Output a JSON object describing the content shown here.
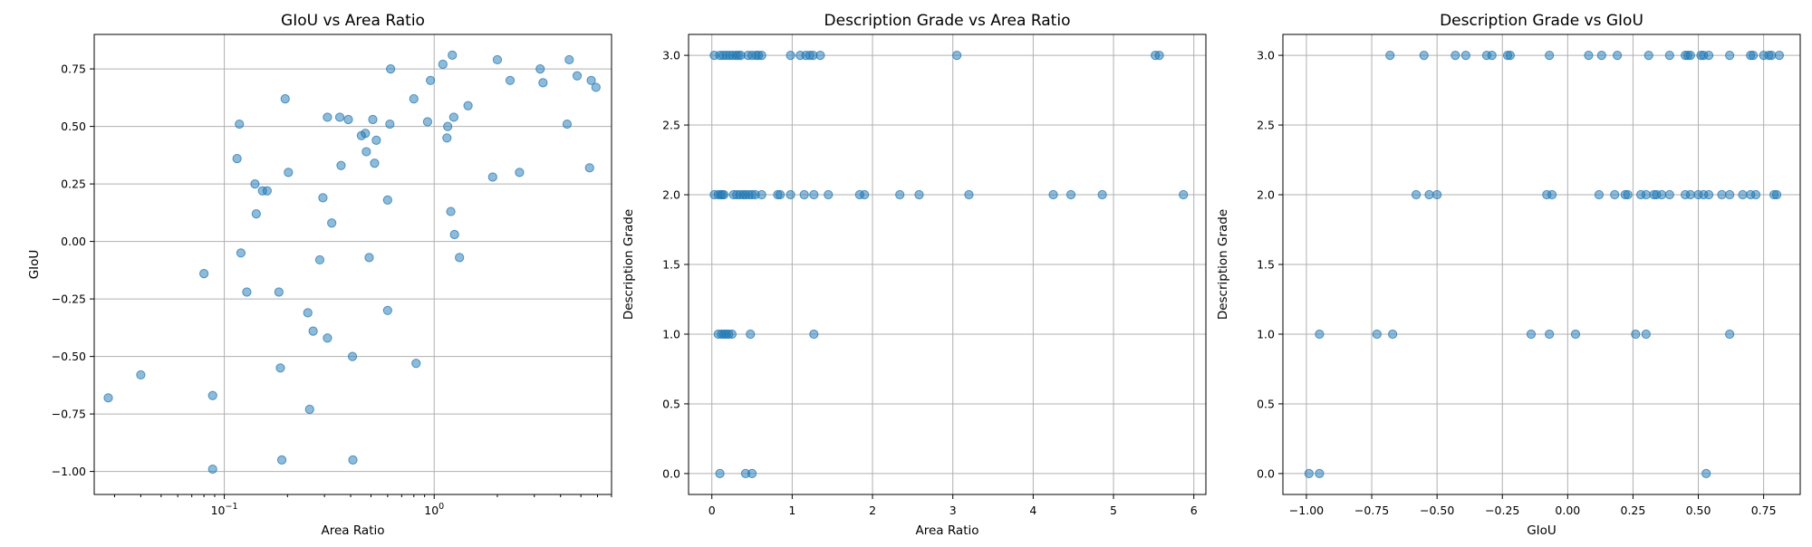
{
  "chart_data": [
    {
      "type": "scatter",
      "title": "GIoU vs Area Ratio",
      "xlabel": "Area Ratio",
      "ylabel": "GIoU",
      "xscale": "log",
      "xlim": [
        0.024,
        7.0
      ],
      "ylim": [
        -1.1,
        0.9
      ],
      "grid": true,
      "point_color": "#1f77b4",
      "x_ticks": [
        {
          "value": 0.1,
          "base": "10",
          "exp": "−1"
        },
        {
          "value": 1,
          "base": "10",
          "exp": "0"
        }
      ],
      "y_ticks": [
        "−1.00",
        "−0.75",
        "−0.50",
        "−0.25",
        "0.00",
        "0.25",
        "0.50",
        "0.75"
      ],
      "y_tick_values": [
        -1.0,
        -0.75,
        -0.5,
        -0.25,
        0.0,
        0.25,
        0.5,
        0.75
      ],
      "points": [
        [
          0.028,
          -0.68
        ],
        [
          0.04,
          -0.58
        ],
        [
          0.08,
          -0.14
        ],
        [
          0.088,
          -0.67
        ],
        [
          0.088,
          -0.99
        ],
        [
          0.115,
          0.36
        ],
        [
          0.118,
          0.51
        ],
        [
          0.12,
          -0.05
        ],
        [
          0.128,
          -0.22
        ],
        [
          0.14,
          0.25
        ],
        [
          0.142,
          0.12
        ],
        [
          0.152,
          0.22
        ],
        [
          0.16,
          0.22
        ],
        [
          0.182,
          -0.22
        ],
        [
          0.185,
          -0.55
        ],
        [
          0.188,
          -0.95
        ],
        [
          0.195,
          0.62
        ],
        [
          0.202,
          0.3
        ],
        [
          0.25,
          -0.31
        ],
        [
          0.255,
          -0.73
        ],
        [
          0.265,
          -0.39
        ],
        [
          0.285,
          -0.08
        ],
        [
          0.295,
          0.19
        ],
        [
          0.31,
          -0.42
        ],
        [
          0.31,
          0.54
        ],
        [
          0.325,
          0.08
        ],
        [
          0.355,
          0.54
        ],
        [
          0.36,
          0.33
        ],
        [
          0.39,
          0.53
        ],
        [
          0.408,
          -0.5
        ],
        [
          0.41,
          -0.95
        ],
        [
          0.45,
          0.46
        ],
        [
          0.47,
          0.47
        ],
        [
          0.475,
          0.39
        ],
        [
          0.49,
          -0.07
        ],
        [
          0.51,
          0.53
        ],
        [
          0.52,
          0.34
        ],
        [
          0.53,
          0.44
        ],
        [
          0.6,
          0.18
        ],
        [
          0.6,
          -0.3
        ],
        [
          0.615,
          0.51
        ],
        [
          0.62,
          0.75
        ],
        [
          0.8,
          0.62
        ],
        [
          0.82,
          -0.53
        ],
        [
          0.93,
          0.52
        ],
        [
          0.96,
          0.7
        ],
        [
          1.1,
          0.77
        ],
        [
          1.15,
          0.45
        ],
        [
          1.16,
          0.5
        ],
        [
          1.2,
          0.13
        ],
        [
          1.22,
          0.81
        ],
        [
          1.24,
          0.54
        ],
        [
          1.25,
          0.03
        ],
        [
          1.32,
          -0.07
        ],
        [
          1.45,
          0.59
        ],
        [
          1.9,
          0.28
        ],
        [
          2.0,
          0.79
        ],
        [
          2.3,
          0.7
        ],
        [
          2.55,
          0.3
        ],
        [
          3.2,
          0.75
        ],
        [
          3.3,
          0.69
        ],
        [
          4.3,
          0.51
        ],
        [
          4.4,
          0.79
        ],
        [
          4.8,
          0.72
        ],
        [
          5.5,
          0.32
        ],
        [
          5.6,
          0.7
        ],
        [
          5.9,
          0.67
        ]
      ]
    },
    {
      "type": "scatter",
      "title": "Description Grade vs Area Ratio",
      "xlabel": "Area Ratio",
      "ylabel": "Description Grade",
      "xlim": [
        -0.29,
        6.15
      ],
      "ylim": [
        -0.15,
        3.15
      ],
      "grid": true,
      "point_color": "#1f77b4",
      "x_ticks": [
        "0",
        "1",
        "2",
        "3",
        "4",
        "5",
        "6"
      ],
      "x_tick_values": [
        0,
        1,
        2,
        3,
        4,
        5,
        6
      ],
      "y_ticks": [
        "0.0",
        "0.5",
        "1.0",
        "1.5",
        "2.0",
        "2.5",
        "3.0"
      ],
      "y_tick_values": [
        0,
        0.5,
        1,
        1.5,
        2,
        2.5,
        3
      ],
      "points": [
        [
          0.03,
          3
        ],
        [
          0.1,
          3
        ],
        [
          0.14,
          3
        ],
        [
          0.18,
          3
        ],
        [
          0.22,
          3
        ],
        [
          0.26,
          3
        ],
        [
          0.3,
          3
        ],
        [
          0.33,
          3
        ],
        [
          0.36,
          3
        ],
        [
          0.45,
          3
        ],
        [
          0.5,
          3
        ],
        [
          0.55,
          3
        ],
        [
          0.58,
          3
        ],
        [
          0.62,
          3
        ],
        [
          0.98,
          3
        ],
        [
          1.1,
          3
        ],
        [
          1.17,
          3
        ],
        [
          1.22,
          3
        ],
        [
          1.26,
          3
        ],
        [
          1.35,
          3
        ],
        [
          3.05,
          3
        ],
        [
          5.52,
          3
        ],
        [
          5.57,
          3
        ],
        [
          0.03,
          2
        ],
        [
          0.08,
          2
        ],
        [
          0.11,
          2
        ],
        [
          0.13,
          2
        ],
        [
          0.15,
          2
        ],
        [
          0.27,
          2
        ],
        [
          0.31,
          2
        ],
        [
          0.35,
          2
        ],
        [
          0.39,
          2
        ],
        [
          0.42,
          2
        ],
        [
          0.46,
          2
        ],
        [
          0.5,
          2
        ],
        [
          0.54,
          2
        ],
        [
          0.62,
          2
        ],
        [
          0.82,
          2
        ],
        [
          0.85,
          2
        ],
        [
          0.98,
          2
        ],
        [
          1.15,
          2
        ],
        [
          1.27,
          2
        ],
        [
          1.45,
          2
        ],
        [
          1.84,
          2
        ],
        [
          1.9,
          2
        ],
        [
          2.34,
          2
        ],
        [
          2.58,
          2
        ],
        [
          3.2,
          2
        ],
        [
          4.25,
          2
        ],
        [
          4.47,
          2
        ],
        [
          4.86,
          2
        ],
        [
          5.87,
          2
        ],
        [
          0.08,
          1
        ],
        [
          0.12,
          1
        ],
        [
          0.15,
          1
        ],
        [
          0.18,
          1
        ],
        [
          0.21,
          1
        ],
        [
          0.25,
          1
        ],
        [
          0.48,
          1
        ],
        [
          1.27,
          1
        ],
        [
          0.1,
          0
        ],
        [
          0.42,
          0
        ],
        [
          0.5,
          0
        ]
      ]
    },
    {
      "type": "scatter",
      "title": "Description Grade vs GIoU",
      "xlabel": "GIoU",
      "ylabel": "Description Grade",
      "xlim": [
        -1.09,
        0.89
      ],
      "ylim": [
        -0.15,
        3.15
      ],
      "grid": true,
      "point_color": "#1f77b4",
      "x_ticks": [
        "−1.00",
        "−0.75",
        "−0.50",
        "−0.25",
        "0.00",
        "0.25",
        "0.50",
        "0.75"
      ],
      "x_tick_values": [
        -1.0,
        -0.75,
        -0.5,
        -0.25,
        0.0,
        0.25,
        0.5,
        0.75
      ],
      "y_ticks": [
        "0.0",
        "0.5",
        "1.0",
        "1.5",
        "2.0",
        "2.5",
        "3.0"
      ],
      "y_tick_values": [
        0,
        0.5,
        1,
        1.5,
        2,
        2.5,
        3
      ],
      "points": [
        [
          -0.68,
          3
        ],
        [
          -0.55,
          3
        ],
        [
          -0.43,
          3
        ],
        [
          -0.39,
          3
        ],
        [
          -0.31,
          3
        ],
        [
          -0.29,
          3
        ],
        [
          -0.23,
          3
        ],
        [
          -0.22,
          3
        ],
        [
          -0.07,
          3
        ],
        [
          0.08,
          3
        ],
        [
          0.13,
          3
        ],
        [
          0.19,
          3
        ],
        [
          0.31,
          3
        ],
        [
          0.39,
          3
        ],
        [
          0.45,
          3
        ],
        [
          0.46,
          3
        ],
        [
          0.47,
          3
        ],
        [
          0.51,
          3
        ],
        [
          0.52,
          3
        ],
        [
          0.54,
          3
        ],
        [
          0.62,
          3
        ],
        [
          0.7,
          3
        ],
        [
          0.71,
          3
        ],
        [
          0.75,
          3
        ],
        [
          0.77,
          3
        ],
        [
          0.78,
          3
        ],
        [
          0.81,
          3
        ],
        [
          -0.58,
          2
        ],
        [
          -0.53,
          2
        ],
        [
          -0.5,
          2
        ],
        [
          -0.08,
          2
        ],
        [
          -0.06,
          2
        ],
        [
          0.12,
          2
        ],
        [
          0.18,
          2
        ],
        [
          0.22,
          2
        ],
        [
          0.23,
          2
        ],
        [
          0.28,
          2
        ],
        [
          0.3,
          2
        ],
        [
          0.33,
          2
        ],
        [
          0.34,
          2
        ],
        [
          0.36,
          2
        ],
        [
          0.39,
          2
        ],
        [
          0.45,
          2
        ],
        [
          0.47,
          2
        ],
        [
          0.5,
          2
        ],
        [
          0.52,
          2
        ],
        [
          0.54,
          2
        ],
        [
          0.59,
          2
        ],
        [
          0.62,
          2
        ],
        [
          0.67,
          2
        ],
        [
          0.7,
          2
        ],
        [
          0.72,
          2
        ],
        [
          0.79,
          2
        ],
        [
          0.8,
          2
        ],
        [
          -0.95,
          1
        ],
        [
          -0.73,
          1
        ],
        [
          -0.67,
          1
        ],
        [
          -0.14,
          1
        ],
        [
          -0.07,
          1
        ],
        [
          0.03,
          1
        ],
        [
          0.26,
          1
        ],
        [
          0.3,
          1
        ],
        [
          0.62,
          1
        ],
        [
          -0.99,
          0
        ],
        [
          -0.95,
          0
        ],
        [
          0.53,
          0
        ]
      ]
    }
  ]
}
